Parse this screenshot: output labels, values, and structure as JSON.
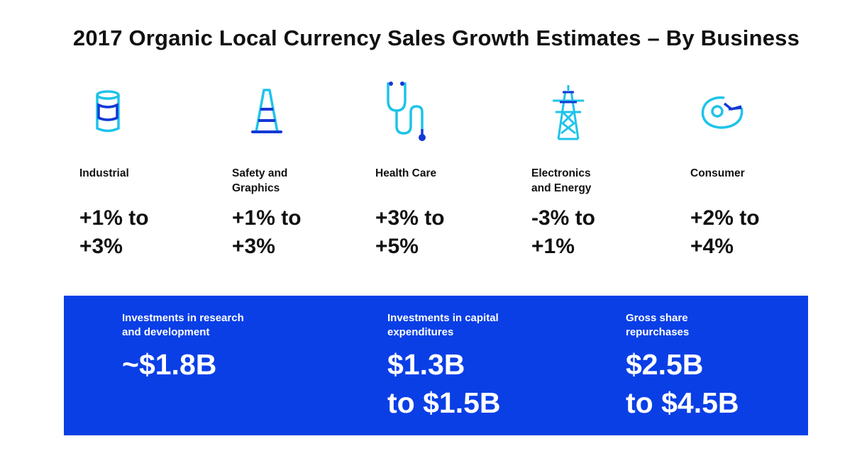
{
  "title": "2017 Organic Local Currency Sales Growth Estimates – By Business",
  "businesses": [
    {
      "name": "Industrial",
      "range_line1": "+1% to",
      "range_line2": "+3%",
      "icon": "oil-barrel-icon"
    },
    {
      "name": "Safety and Graphics",
      "range_line1": "+1% to",
      "range_line2": "+3%",
      "icon": "traffic-cone-icon"
    },
    {
      "name": "Health Care",
      "range_line1": "+3% to",
      "range_line2": "+5%",
      "icon": "stethoscope-icon"
    },
    {
      "name": "Electronics and Energy",
      "range_line1": "-3% to",
      "range_line2": "+1%",
      "icon": "power-tower-icon"
    },
    {
      "name": "Consumer",
      "range_line1": "+2% to",
      "range_line2": "+4%",
      "icon": "tape-dispenser-icon"
    }
  ],
  "investments": [
    {
      "label": "Investments in research and development",
      "amount_line1": "~$1.8B",
      "amount_line2": ""
    },
    {
      "label": "Investments in capital expenditures",
      "amount_line1": "$1.3B",
      "amount_line2": "to $1.5B"
    },
    {
      "label": "Gross share repurchases",
      "amount_line1": "$2.5B",
      "amount_line2": "to $4.5B"
    }
  ],
  "colors": {
    "accent_blue": "#0a3fe6",
    "icon_cyan": "#1ec3ea",
    "icon_navy": "#1438d6"
  }
}
